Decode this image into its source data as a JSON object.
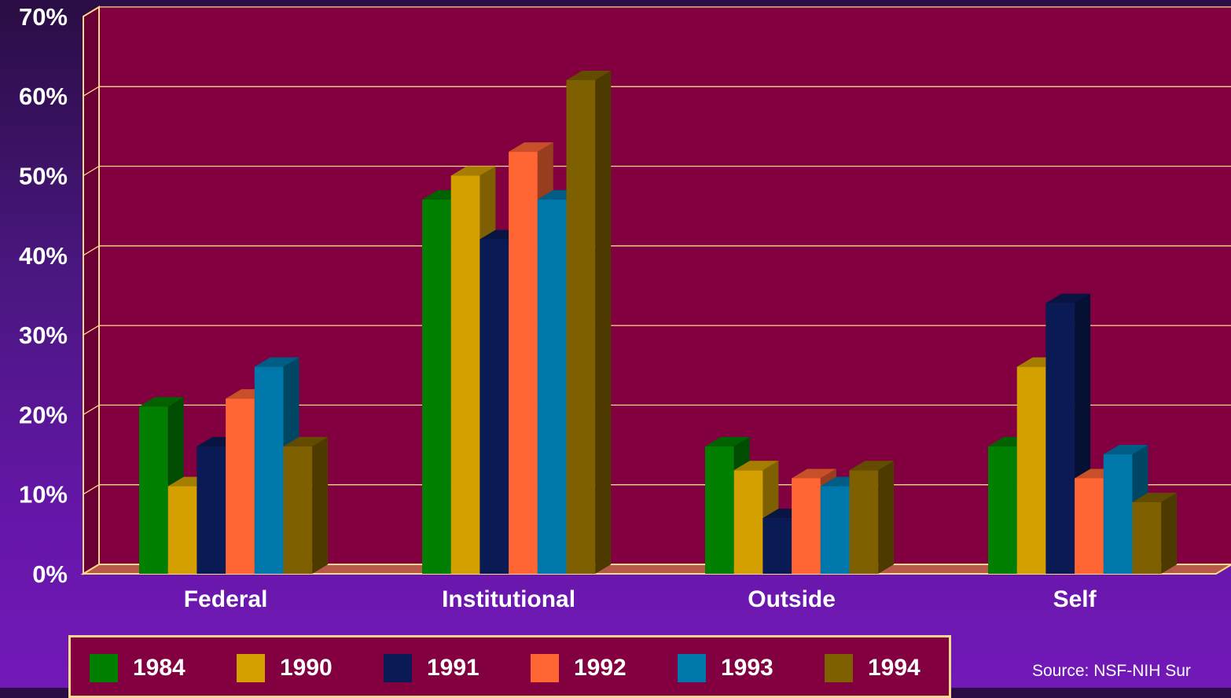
{
  "chart_data": {
    "type": "bar",
    "categories": [
      "Federal",
      "Institutional",
      "Outside",
      "Self"
    ],
    "series": [
      {
        "name": "1984",
        "color": "#007f00",
        "values": [
          21,
          47,
          16,
          16
        ]
      },
      {
        "name": "1990",
        "color": "#d4a000",
        "values": [
          11,
          50,
          13,
          26
        ]
      },
      {
        "name": "1991",
        "color": "#0a1a55",
        "values": [
          16,
          42,
          7,
          34
        ]
      },
      {
        "name": "1992",
        "color": "#ff6633",
        "values": [
          22,
          53,
          12,
          12
        ]
      },
      {
        "name": "1993",
        "color": "#0077aa",
        "values": [
          26,
          47,
          11,
          15
        ]
      },
      {
        "name": "1994",
        "color": "#7f6000",
        "values": [
          16,
          62,
          13,
          9
        ]
      }
    ],
    "y_ticks": [
      "0%",
      "10%",
      "20%",
      "30%",
      "40%",
      "50%",
      "60%",
      "70%"
    ],
    "ylim": [
      0,
      70
    ],
    "grid": true,
    "legend_position": "bottom",
    "plot_color": "#820040",
    "grid_color": "#ffd98c"
  },
  "source_text": "Source: NSF-NIH Sur"
}
